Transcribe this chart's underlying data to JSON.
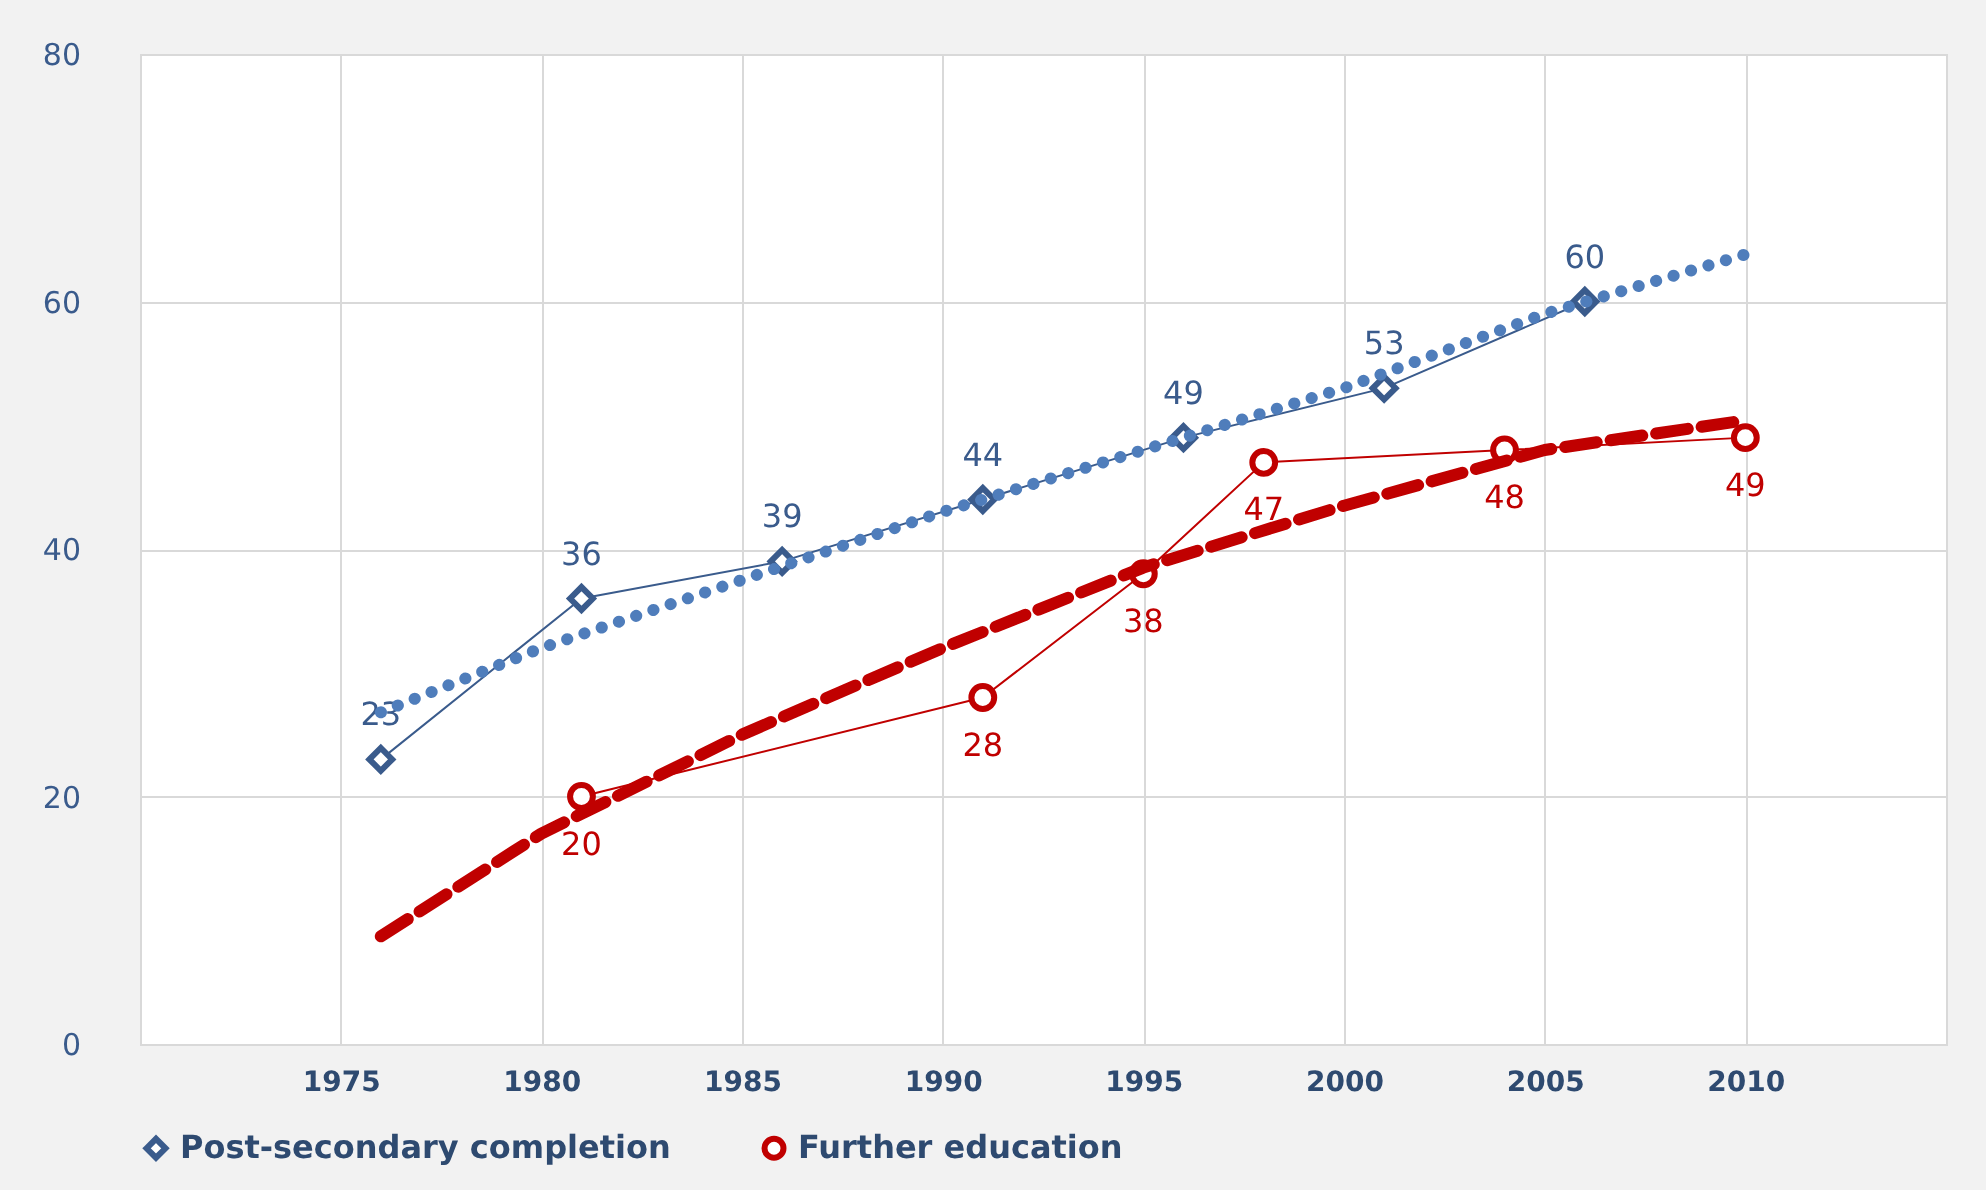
{
  "chart_data": {
    "type": "line",
    "xlim": [
      1970,
      2015
    ],
    "xticks": [
      1975,
      1980,
      1985,
      1990,
      1995,
      2000,
      2005,
      2010
    ],
    "ylim": [
      0,
      80
    ],
    "yticks": [
      0,
      20,
      40,
      60,
      80
    ],
    "grid": true,
    "legend": "bottom",
    "series": [
      {
        "name": "Post-secondary completion",
        "color": "#3a5b8c",
        "marker": "diamond",
        "line_style": "solid",
        "x": [
          1976,
          1981,
          1986,
          1991,
          1996,
          2001,
          2006
        ],
        "values": [
          23,
          36,
          39,
          44,
          49,
          53,
          60
        ],
        "value_labels": [
          "23",
          "36",
          "39",
          "44",
          "49",
          "53",
          "60"
        ]
      },
      {
        "name": "Further education",
        "color": "#c00000",
        "marker": "circle",
        "line_style": "solid",
        "x": [
          1981,
          1991,
          1995,
          1998,
          2004,
          2010
        ],
        "values": [
          20,
          28,
          38,
          47,
          48,
          49
        ],
        "value_labels": [
          "20",
          "28",
          "38",
          "47",
          "48",
          "49"
        ]
      },
      {
        "color": "#4f7dbb",
        "marker": "none",
        "line_style": "dotted",
        "x": [
          1976,
          1980,
          1985,
          1990,
          1995,
          2000,
          2005,
          2010
        ],
        "values": [
          26.8,
          32,
          37.5,
          43,
          48,
          53,
          59,
          63.8
        ]
      },
      {
        "color": "#c00000",
        "marker": "none",
        "line_style": "dashed",
        "x": [
          1976,
          1980,
          1985,
          1990,
          1995,
          2000,
          2005,
          2010
        ],
        "values": [
          8.7,
          17,
          25,
          32,
          38.5,
          43.5,
          48,
          50.4
        ]
      }
    ]
  }
}
